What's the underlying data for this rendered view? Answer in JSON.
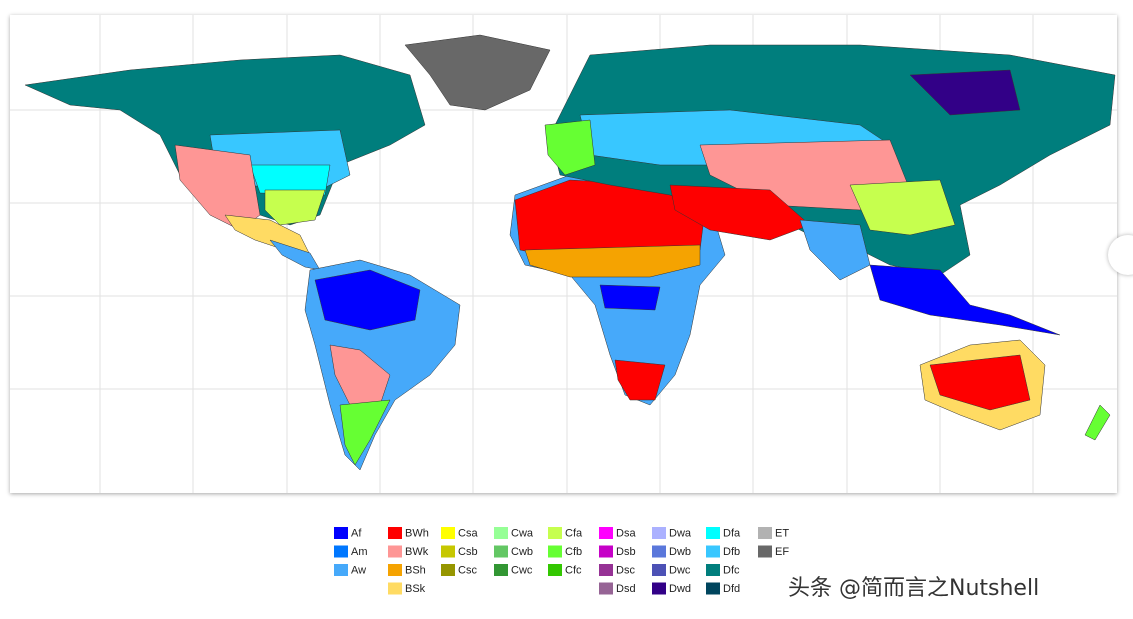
{
  "legend": {
    "groups": [
      {
        "items": [
          {
            "label": "Af",
            "color": "#0000fe"
          },
          {
            "label": "Am",
            "color": "#0077ff"
          },
          {
            "label": "Aw",
            "color": "#46a9fa"
          }
        ]
      },
      {
        "items": [
          {
            "label": "BWh",
            "color": "#fe0000"
          },
          {
            "label": "BWk",
            "color": "#fe9695"
          },
          {
            "label": "BSh",
            "color": "#f5a301"
          },
          {
            "label": "BSk",
            "color": "#ffdb63"
          }
        ]
      },
      {
        "items": [
          {
            "label": "Csa",
            "color": "#ffff00"
          },
          {
            "label": "Csb",
            "color": "#c6c700"
          },
          {
            "label": "Csc",
            "color": "#969600"
          }
        ]
      },
      {
        "items": [
          {
            "label": "Cwa",
            "color": "#96ff96"
          },
          {
            "label": "Cwb",
            "color": "#63c764"
          },
          {
            "label": "Cwc",
            "color": "#329633"
          }
        ]
      },
      {
        "items": [
          {
            "label": "Cfa",
            "color": "#c6ff4e"
          },
          {
            "label": "Cfb",
            "color": "#66ff33"
          },
          {
            "label": "Cfc",
            "color": "#33c701"
          }
        ]
      },
      {
        "items": [
          {
            "label": "Dsa",
            "color": "#ff00fe"
          },
          {
            "label": "Dsb",
            "color": "#c600c7"
          },
          {
            "label": "Dsc",
            "color": "#963295"
          },
          {
            "label": "Dsd",
            "color": "#966495"
          }
        ]
      },
      {
        "items": [
          {
            "label": "Dwa",
            "color": "#abb1ff"
          },
          {
            "label": "Dwb",
            "color": "#5a77db"
          },
          {
            "label": "Dwc",
            "color": "#4c51b5"
          },
          {
            "label": "Dwd",
            "color": "#320087"
          }
        ]
      },
      {
        "items": [
          {
            "label": "Dfa",
            "color": "#00ffff"
          },
          {
            "label": "Dfb",
            "color": "#38c7ff"
          },
          {
            "label": "Dfc",
            "color": "#007e7d"
          },
          {
            "label": "Dfd",
            "color": "#00455e"
          }
        ]
      },
      {
        "items": [
          {
            "label": "ET",
            "color": "#b2b2b2"
          },
          {
            "label": "EF",
            "color": "#686868"
          }
        ]
      }
    ]
  },
  "watermark": "头条 @简而言之Nutshell"
}
